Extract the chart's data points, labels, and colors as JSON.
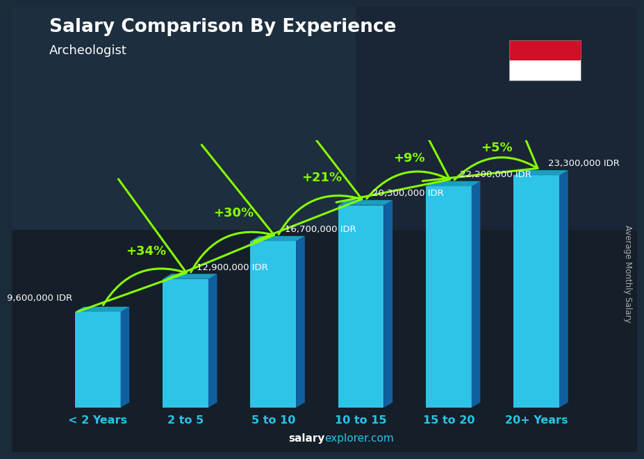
{
  "title": "Salary Comparison By Experience",
  "subtitle": "Archeologist",
  "categories": [
    "< 2 Years",
    "2 to 5",
    "5 to 10",
    "10 to 15",
    "15 to 20",
    "20+ Years"
  ],
  "values": [
    9600000,
    12900000,
    16700000,
    20300000,
    22200000,
    23300000
  ],
  "labels": [
    "9,600,000 IDR",
    "12,900,000 IDR",
    "16,700,000 IDR",
    "20,300,000 IDR",
    "22,200,000 IDR",
    "23,300,000 IDR"
  ],
  "pct_changes": [
    "+34%",
    "+30%",
    "+21%",
    "+9%",
    "+5%"
  ],
  "bar_color_front": "#2ec4e8",
  "bar_color_side": "#1060a0",
  "bar_color_top": "#1a9fc0",
  "bg_color": "#1c2b3a",
  "pct_color": "#88ff00",
  "label_color": "#ffffff",
  "xtick_color": "#29c4e8",
  "ylabel_text": "Average Monthly Salary",
  "footer_salary_color": "#ffffff",
  "footer_explorer_color": "#29c4e8",
  "flag_red": "#CE1126",
  "flag_white": "#ffffff"
}
